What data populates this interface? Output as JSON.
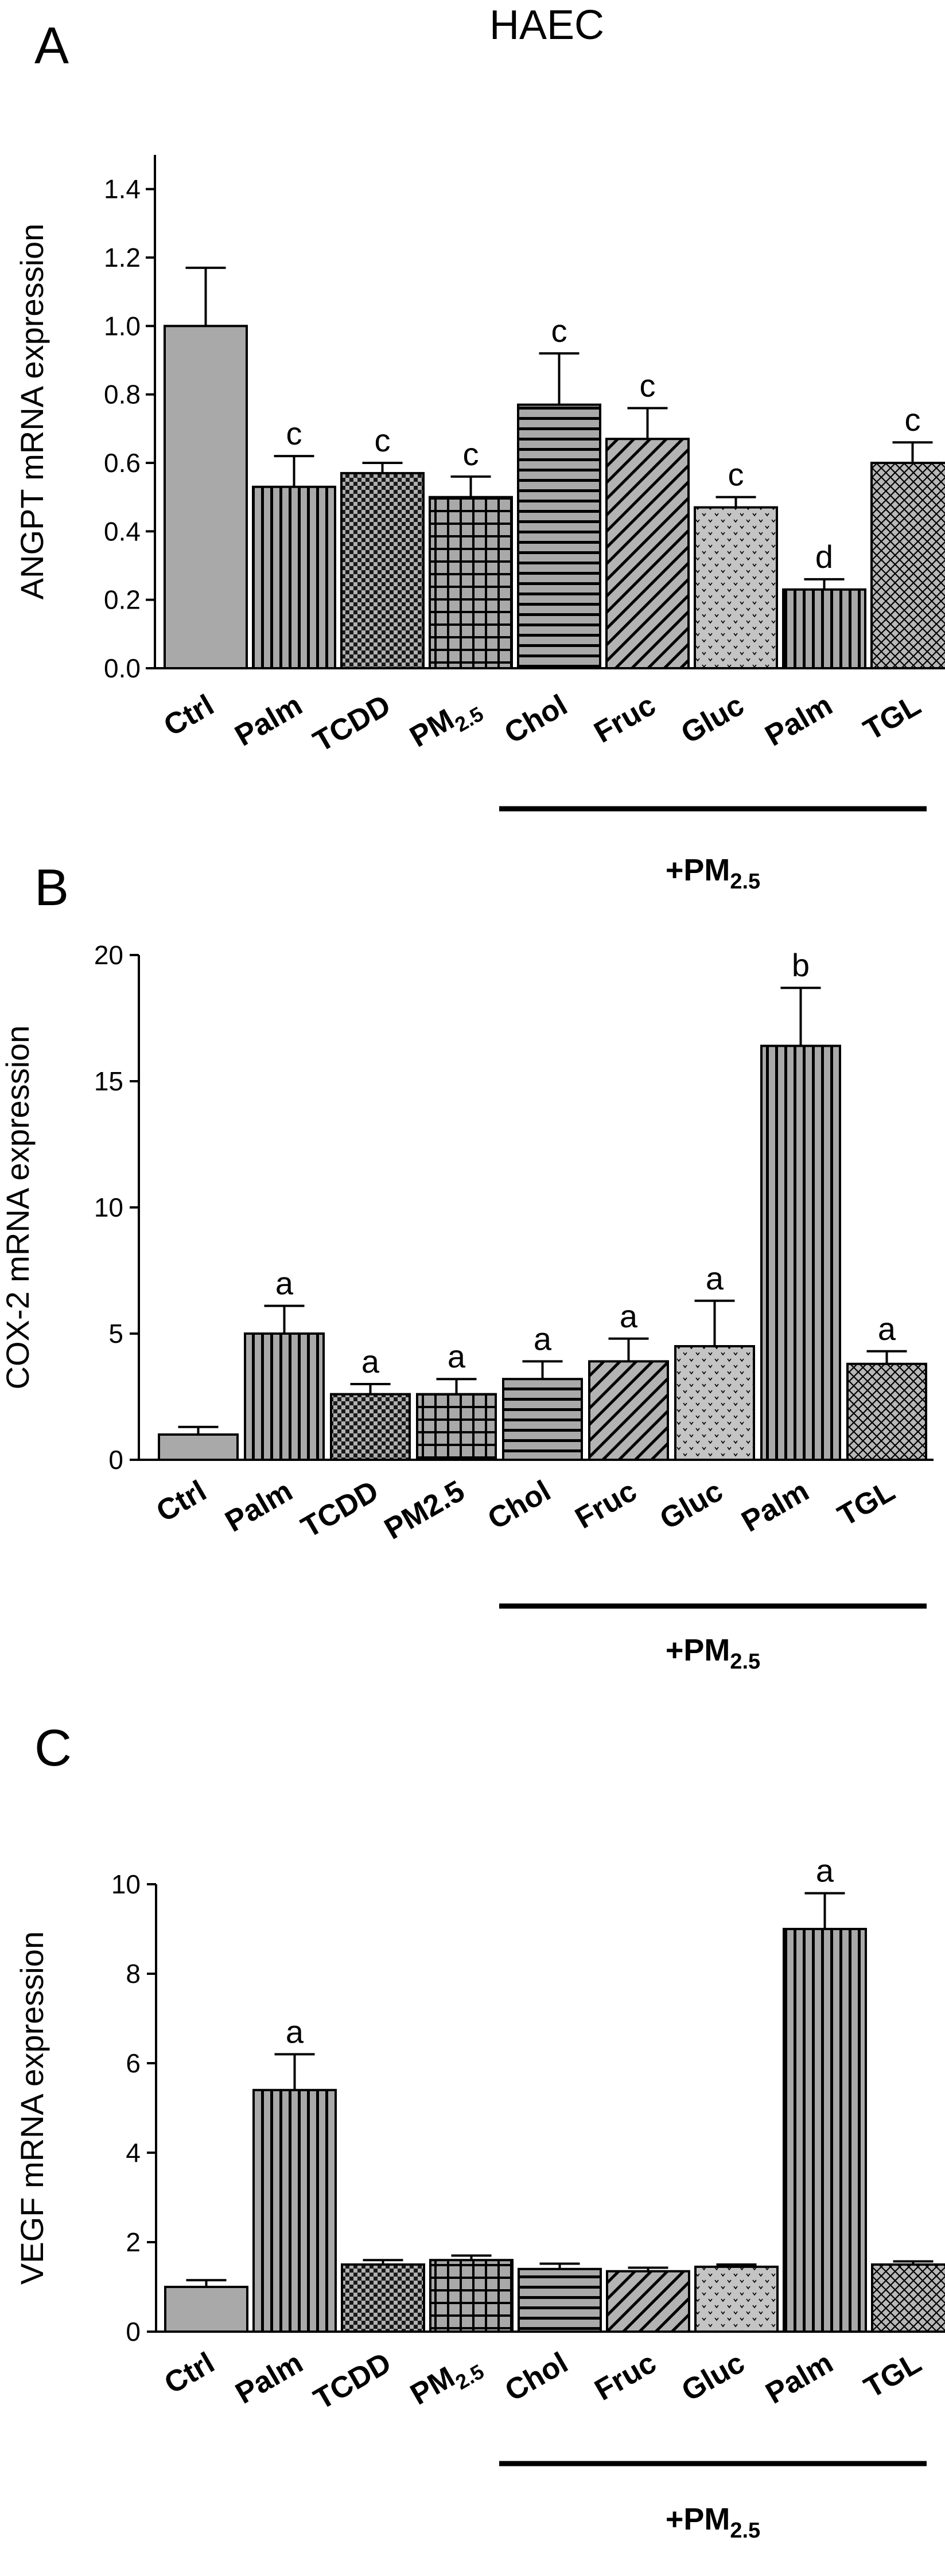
{
  "figure_title": "HAEC",
  "chart_data": [
    {
      "type": "bar",
      "panel_label": "A",
      "ylabel": "ANGPT mRNA expression",
      "ylim": [
        0,
        1.5
      ],
      "yticks": [
        "0.0",
        "0.2",
        "0.4",
        "0.6",
        "0.8",
        "1.0",
        "1.2",
        "1.4"
      ],
      "categories": [
        "Ctrl",
        "Palm",
        "TCDD",
        "PM",
        "Chol",
        "Fruc",
        "Gluc",
        "Palm",
        "TGL"
      ],
      "subscripts": [
        "",
        "",
        "",
        "2.5",
        "",
        "",
        "",
        "",
        ""
      ],
      "values": [
        1.0,
        0.53,
        0.57,
        0.5,
        0.77,
        0.67,
        0.47,
        0.23,
        0.6
      ],
      "errors": [
        0.17,
        0.09,
        0.03,
        0.06,
        0.15,
        0.09,
        0.03,
        0.03,
        0.06
      ],
      "annotations": [
        "",
        "c",
        "c",
        "c",
        "c",
        "c",
        "c",
        "d",
        "c"
      ],
      "patterns": [
        "solid",
        "vlines",
        "checker",
        "grid",
        "hlines",
        "diag",
        "dots",
        "vlines",
        "cross"
      ],
      "group_label": "+PM",
      "group_label_sub": "2.5",
      "grid": false
    },
    {
      "type": "bar",
      "panel_label": "B",
      "ylabel": "COX-2 mRNA expression",
      "ylim": [
        0,
        20
      ],
      "yticks": [
        "0",
        "5",
        "10",
        "15",
        "20"
      ],
      "categories": [
        "Ctrl",
        "Palm",
        "TCDD",
        "PM2.5",
        "Chol",
        "Fruc",
        "Gluc",
        "Palm",
        "TGL"
      ],
      "subscripts": [
        "",
        "",
        "",
        "",
        "",
        "",
        "",
        "",
        ""
      ],
      "values": [
        1.0,
        5.0,
        2.6,
        2.6,
        3.2,
        3.9,
        4.5,
        16.4,
        3.8
      ],
      "errors": [
        0.3,
        1.1,
        0.4,
        0.6,
        0.7,
        0.9,
        1.8,
        2.3,
        0.5
      ],
      "annotations": [
        "",
        "a",
        "a",
        "a",
        "a",
        "a",
        "a",
        "b",
        "a"
      ],
      "patterns": [
        "solid",
        "vlines",
        "checker",
        "grid",
        "hlines",
        "diag",
        "dots",
        "vlines",
        "cross"
      ],
      "group_label": "+PM",
      "group_label_sub": "2.5",
      "grid": false
    },
    {
      "type": "bar",
      "panel_label": "C",
      "ylabel": "VEGF mRNA expression",
      "ylim": [
        0,
        10
      ],
      "yticks": [
        "0",
        "2",
        "4",
        "6",
        "8",
        "10"
      ],
      "categories": [
        "Ctrl",
        "Palm",
        "TCDD",
        "PM",
        "Chol",
        "Fruc",
        "Gluc",
        "Palm",
        "TGL"
      ],
      "subscripts": [
        "",
        "",
        "",
        "2.5",
        "",
        "",
        "",
        "",
        ""
      ],
      "values": [
        1.0,
        5.4,
        1.5,
        1.6,
        1.4,
        1.35,
        1.45,
        9.0,
        1.5
      ],
      "errors": [
        0.15,
        0.8,
        0.1,
        0.1,
        0.12,
        0.08,
        0.05,
        0.8,
        0.07
      ],
      "annotations": [
        "",
        "a",
        "",
        "",
        "",
        "",
        "",
        "a",
        ""
      ],
      "patterns": [
        "solid",
        "vlines",
        "checker",
        "grid",
        "hlines",
        "diag",
        "dots",
        "vlines",
        "cross"
      ],
      "group_label": "+PM",
      "group_label_sub": "2.5",
      "grid": false
    }
  ]
}
